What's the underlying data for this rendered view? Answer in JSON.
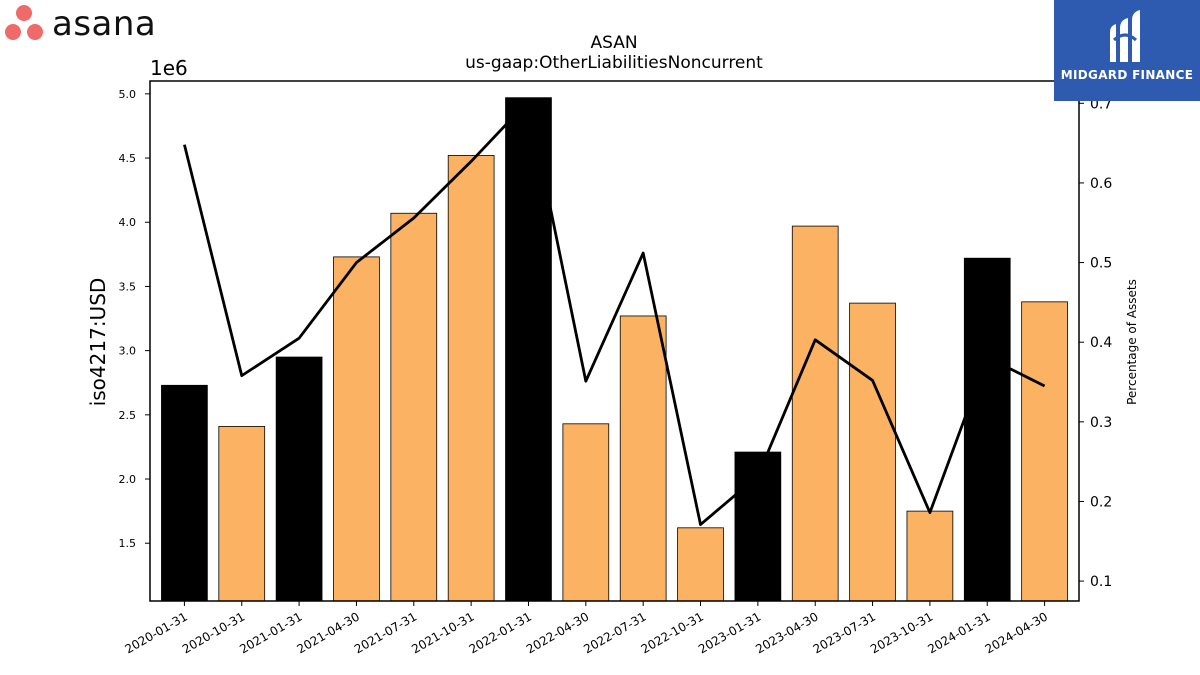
{
  "brand": {
    "asana_logo": {
      "wordmark": "asana",
      "dot_color": "#F06A6A",
      "text_color": "#111111"
    },
    "midgard_logo": {
      "text": "MIDGARD FINANCE",
      "background": "#2E5BAF",
      "icon": "midgard-m-icon"
    }
  },
  "chart_data": {
    "type": "bar",
    "title": "ASAN",
    "subtitle": "us-gaap:OtherLiabilitiesNoncurrent",
    "ylabel": "iso4217:USD",
    "y2label": "Percentage of Assets",
    "y_offset_label": "1e6",
    "categories": [
      "2020-01-31",
      "2020-10-31",
      "2021-01-31",
      "2021-04-30",
      "2021-07-31",
      "2021-10-31",
      "2022-01-31",
      "2022-04-30",
      "2022-07-31",
      "2022-10-31",
      "2023-01-31",
      "2023-04-30",
      "2023-07-31",
      "2023-10-31",
      "2024-01-31",
      "2024-04-30"
    ],
    "values": [
      2.73,
      2.41,
      2.95,
      3.73,
      4.07,
      4.52,
      4.97,
      2.43,
      3.27,
      1.62,
      2.21,
      3.97,
      3.37,
      1.75,
      3.72,
      3.38
    ],
    "bar_colors": [
      "#000000",
      "#FBB262",
      "#000000",
      "#FBB262",
      "#FBB262",
      "#FBB262",
      "#000000",
      "#FBB262",
      "#FBB262",
      "#FBB262",
      "#000000",
      "#FBB262",
      "#FBB262",
      "#FBB262",
      "#000000",
      "#FBB262"
    ],
    "line_values": [
      0.648,
      0.358,
      0.405,
      0.5,
      0.556,
      0.627,
      0.703,
      0.351,
      0.512,
      0.171,
      0.232,
      0.403,
      0.352,
      0.186,
      0.381,
      0.345
    ],
    "line_color": "#000000",
    "ylim": [
      1.05,
      5.1
    ],
    "y_ticks": [
      "1.5",
      "2.0",
      "2.5",
      "3.0",
      "3.5",
      "4.0",
      "4.5",
      "5.0"
    ],
    "y2lim": [
      0.075,
      0.728
    ],
    "y2_ticks": [
      "0.1",
      "0.2",
      "0.3",
      "0.4",
      "0.5",
      "0.6",
      "0.7"
    ],
    "grid": false
  }
}
